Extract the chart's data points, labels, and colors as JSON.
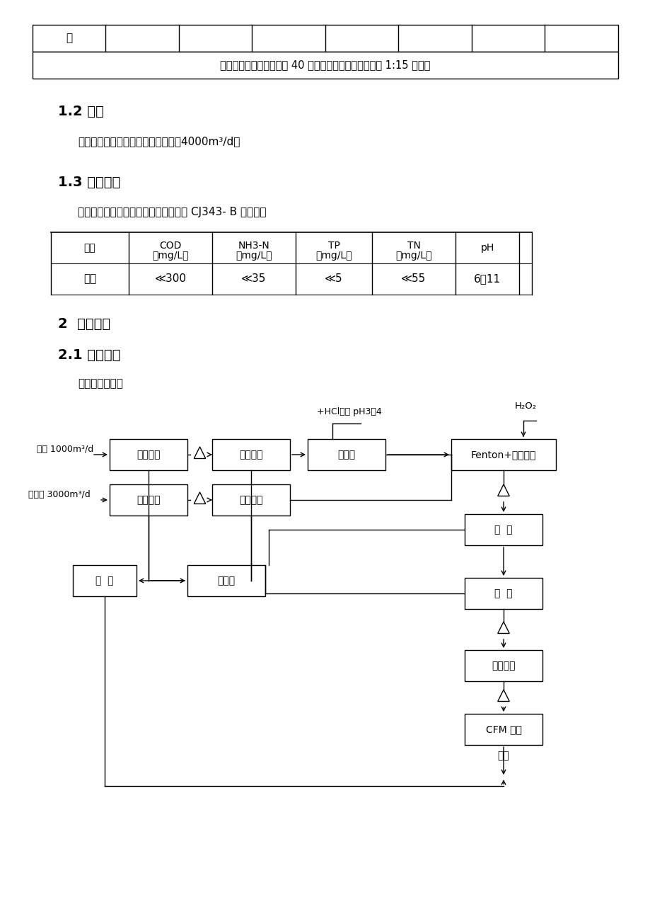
{
  "bg_color": "#ffffff",
  "top_table_header": "质",
  "top_table_data": "高性能颜料总共年产废水 40 万方左右，母液：水洗水为 1:15 左右。",
  "s12_head": "1.2 水量",
  "s12_body": "根据厂家提供数据，设计解决水量：4000m³/d。",
  "s13_head": "1.3 出水规定",
  "s13_body": "污水解决后进入都市污水厂，按下表及 CJ343- B 级执行。",
  "tbl_headers": [
    "指标",
    "COD\n（mg/L）",
    "NH3-N\n（mg/L）",
    "TP\n（mg/L）",
    "TN\n（mg/L）",
    "pH"
  ],
  "tbl_row": [
    "原则",
    "≪300",
    "≪35",
    "≪5",
    "≪55",
    "6～11"
  ],
  "s2_head": "2  解决工艺",
  "s21_head": "2.1 工艺流程",
  "s21_body": "工艺流程如下：",
  "lbl_muye": "母液 1000m³/d",
  "lbl_xishui": "水洗水 3000m³/d",
  "lbl_hcl": "+HCl，调 pH3～4",
  "lbl_h2o2": "H₂O₂",
  "lbl_chushui": "出水",
  "box_chen1": "沉降分离",
  "box_gujie1": "固液分离",
  "box_weidian": "微电解",
  "box_fenton": "Fenton+水解酸化",
  "box_chen2": "沉降分离",
  "box_gujie2": "固液分离",
  "box_yanghua": "氧  化",
  "box_erchen": "二  沉",
  "box_jiechu": "接触氧化",
  "box_cfm": "CFM 分离",
  "box_nigan": "储泥罐",
  "box_yalv": "压  滤"
}
